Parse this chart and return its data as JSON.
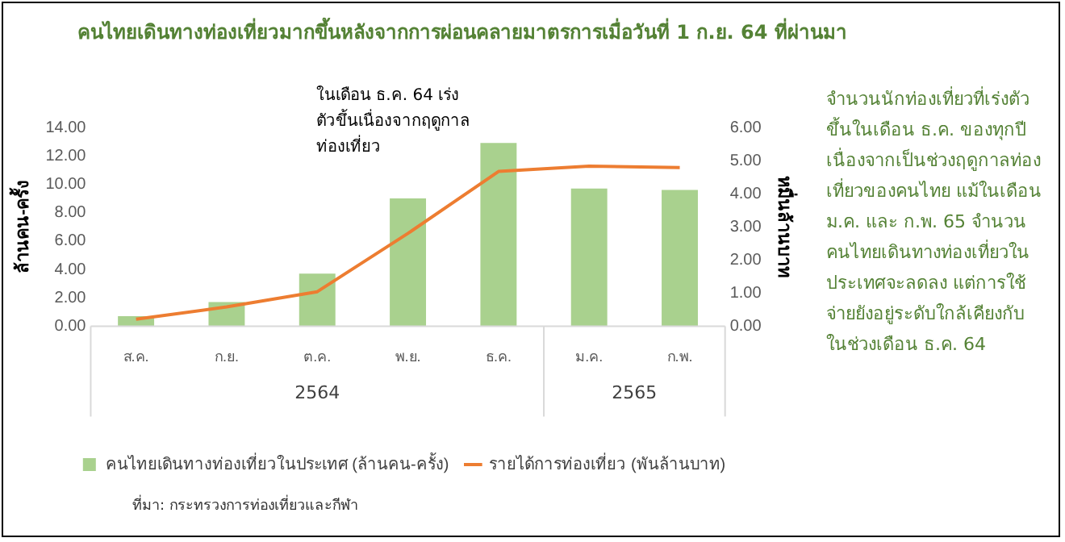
{
  "chart_data": {
    "type": "bar",
    "title": "คนไทยเดินทางท่องเที่ยวมากขึ้นหลังจากการผ่อนคลายมาตรการเมื่อวันที่ 1 ก.ย. 64 ที่ผ่านมา",
    "ylabel": "ล้านคน-ครั้ง",
    "y2label": "หมื่นล้านบาท",
    "categories": [
      "ส.ค.",
      "ก.ย.",
      "ต.ค.",
      "พ.ย.",
      "ธ.ค.",
      "ม.ค.",
      "ก.พ."
    ],
    "series": [
      {
        "name": "คนไทยเดินทางท่องเที่ยวในประเทศ (ล้านคน-ครั้ง)",
        "color": "#a9d18e",
        "values": [
          0.7,
          1.7,
          3.7,
          9.0,
          12.9,
          9.7,
          9.6
        ]
      },
      {
        "name": "รายได้การท่องเที่ยว (พันล้านบาท)",
        "color": "#ed7d31",
        "type": "line",
        "axis": "y2",
        "values": [
          0.21,
          0.58,
          1.04,
          2.8,
          4.67,
          4.83,
          4.79
        ]
      }
    ],
    "ylim": [
      0,
      14
    ],
    "yticks": [
      {
        "value": 0,
        "label": "0.00"
      },
      {
        "value": 2,
        "label": "2.00"
      },
      {
        "value": 4,
        "label": "4.00"
      },
      {
        "value": 6,
        "label": "6.00"
      },
      {
        "value": 8,
        "label": "8.00"
      },
      {
        "value": 10,
        "label": "10.00"
      },
      {
        "value": 12,
        "label": "12.00"
      },
      {
        "value": 14,
        "label": "14.00"
      }
    ],
    "y2lim": [
      0,
      6
    ],
    "y2ticks": [
      {
        "value": 0,
        "label": "0.00"
      },
      {
        "value": 1,
        "label": "1.00"
      },
      {
        "value": 2,
        "label": "2.00"
      },
      {
        "value": 3,
        "label": "3.00"
      },
      {
        "value": 4,
        "label": "4.00"
      },
      {
        "value": 5,
        "label": "5.00"
      },
      {
        "value": 6,
        "label": "6.00"
      }
    ],
    "legend": "bottom",
    "grid": false,
    "annotations": [
      "ในเดือน ธ.ค. 64 เร่งตัวขึ้นเนื่องจากฤดูกาลท่องเที่ยว",
      "2564",
      "2565",
      "จำนวนนักท่องเที่ยวที่เร่งตัวขึ้นในเดือน ธ.ค. ของทุกปีเนื่องจากเป็นช่วงฤดูกาลท่องเที่ยวของคนไทย แม้ในเดือน ม.ค. และ ก.พ. 65 จำนวนคนไทยเดินทางท่องเที่ยวในประเทศจะลดลง แต่การใช้จ่ายยังอยู่ระดับใกล้เคียงกับในช่วงเดือน ธ.ค. 64",
      "ที่มา: กระทรวงการท่องเที่ยวและกีฬา"
    ]
  }
}
